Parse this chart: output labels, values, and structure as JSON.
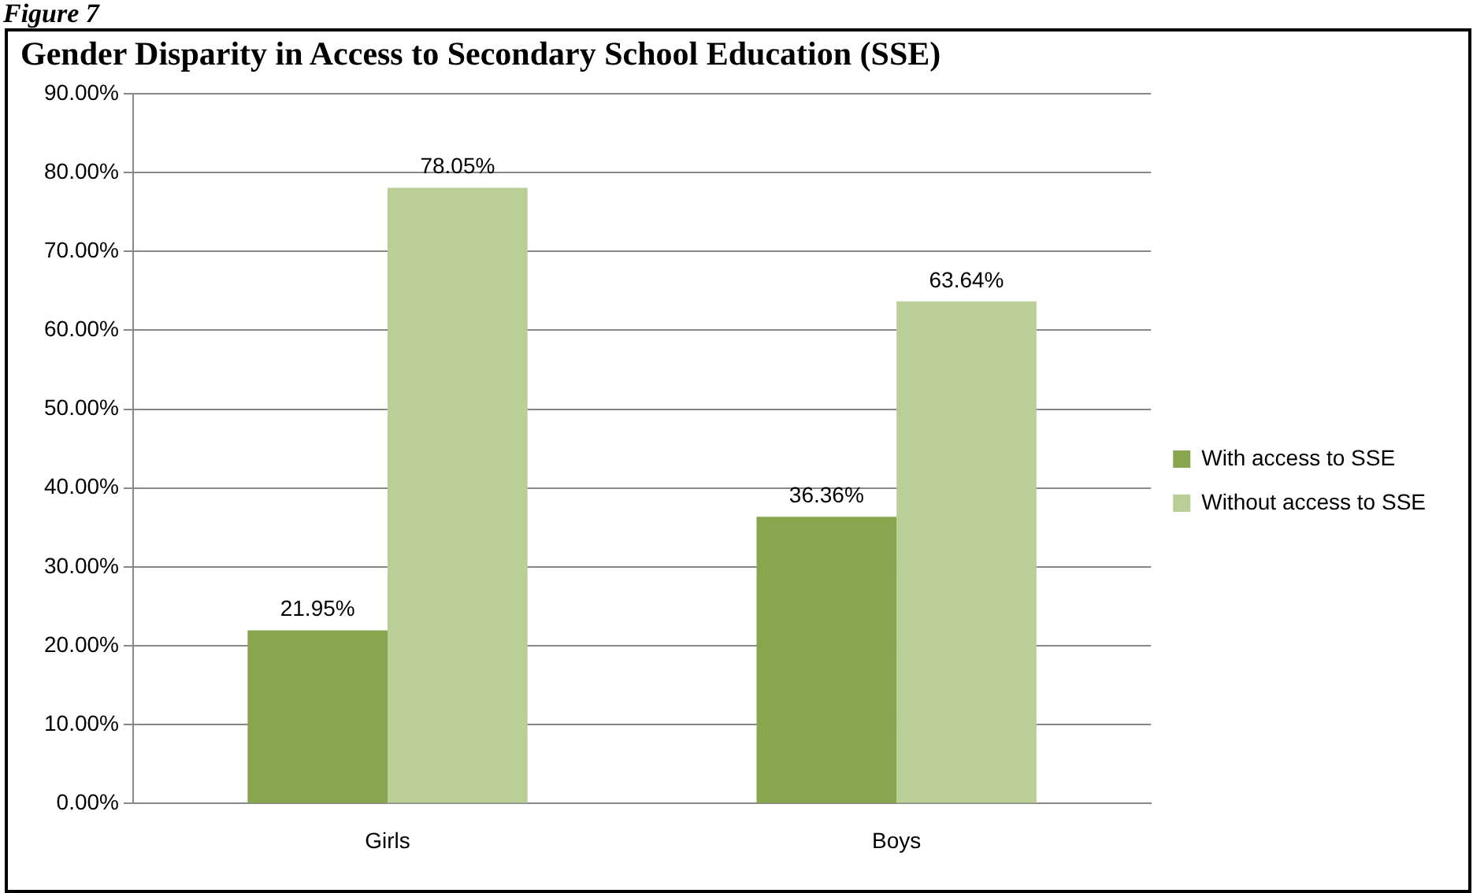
{
  "chart_data": {
    "type": "bar",
    "title": "Gender Disparity in Access to Secondary School Education (SSE)",
    "annotations": [
      "Figure 7"
    ],
    "categories": [
      "Girls",
      "Boys"
    ],
    "series": [
      {
        "name": "With access to SSE",
        "color": "#89a54e",
        "values": [
          21.95,
          36.36
        ],
        "value_labels": [
          "21.95%",
          "36.36%"
        ]
      },
      {
        "name": "Without access to SSE",
        "color": "#b9cf95",
        "values": [
          78.05,
          63.64
        ],
        "value_labels": [
          "78.05%",
          "63.64%"
        ]
      }
    ],
    "ylim": [
      0,
      90
    ],
    "yticks": [
      {
        "value": 0,
        "label": "0.00%"
      },
      {
        "value": 10,
        "label": "10.00%"
      },
      {
        "value": 20,
        "label": "20.00%"
      },
      {
        "value": 30,
        "label": "30.00%"
      },
      {
        "value": 40,
        "label": "40.00%"
      },
      {
        "value": 50,
        "label": "50.00%"
      },
      {
        "value": 60,
        "label": "60.00%"
      },
      {
        "value": 70,
        "label": "70.00%"
      },
      {
        "value": 80,
        "label": "80.00%"
      },
      {
        "value": 90,
        "label": "90.00%"
      }
    ],
    "grid": "y",
    "legend": "right"
  }
}
